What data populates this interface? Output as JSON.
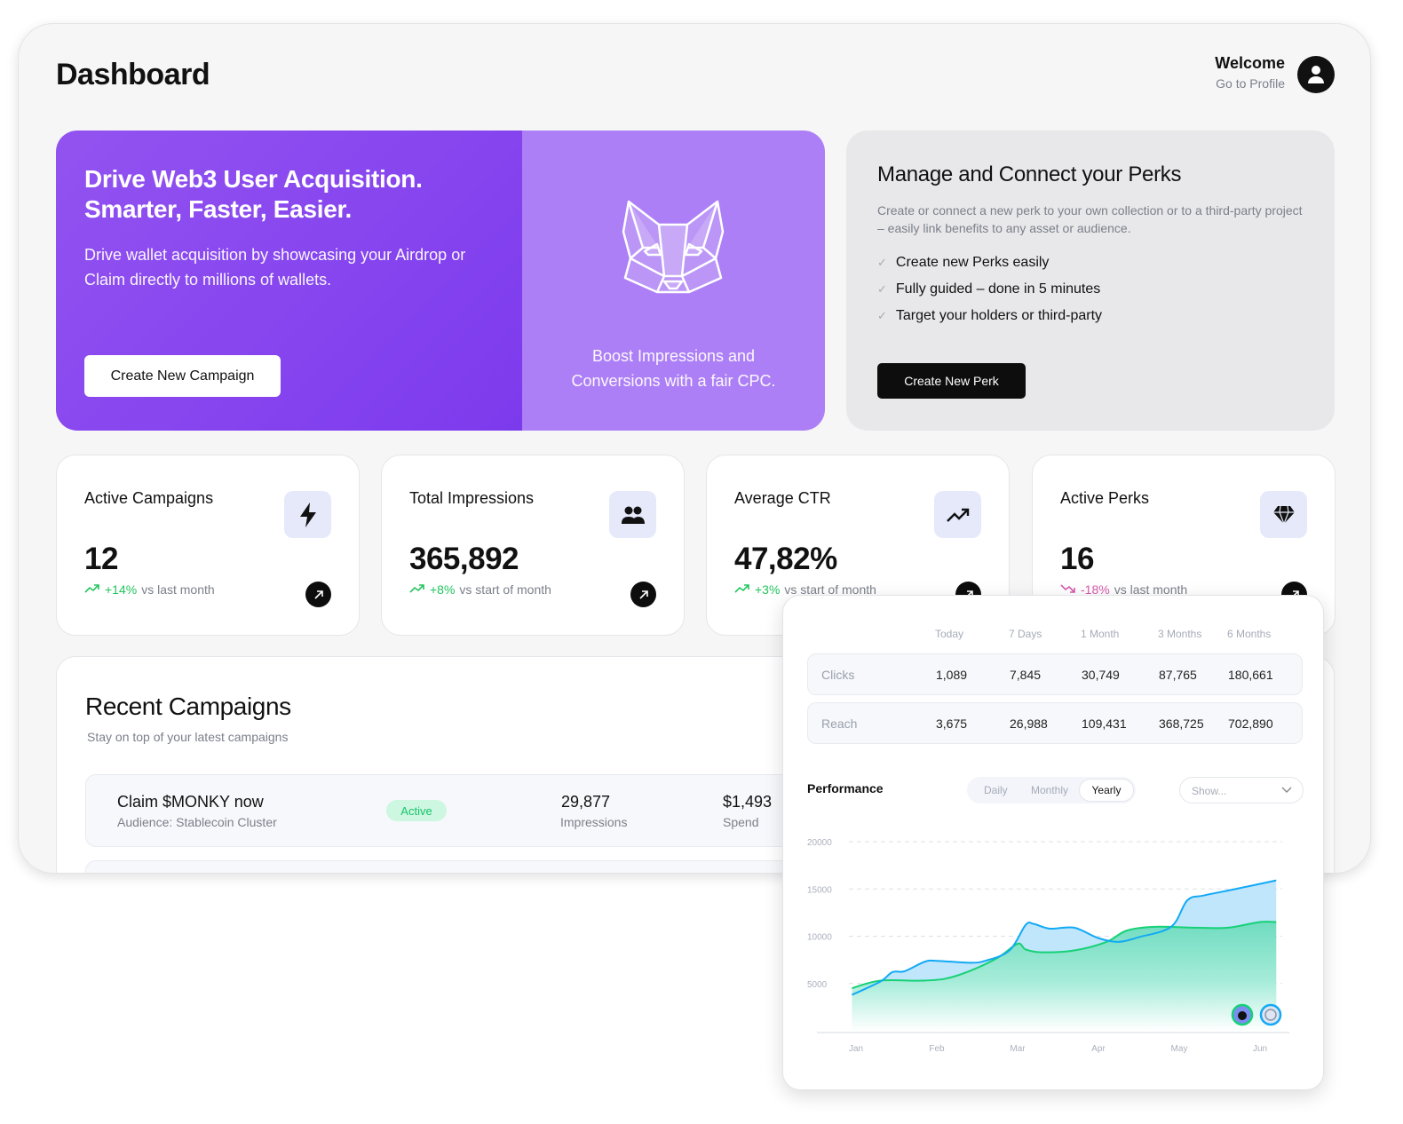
{
  "header": {
    "title": "Dashboard",
    "welcome": "Welcome",
    "profile_link": "Go to Profile"
  },
  "hero": {
    "headline_1": "Drive Web3 User Acquisition.",
    "headline_2": "Smarter, Faster, Easier.",
    "description": "Drive wallet acquisition by showcasing your Airdrop or Claim directly to millions of wallets.",
    "button": "Create New Campaign",
    "side_text": "Boost Impressions and Conversions with a fair CPC.",
    "logo": "fox-icon",
    "colors": {
      "primary": "#8b47ee",
      "secondary": "#ad7ff6"
    }
  },
  "perks": {
    "title": "Manage and Connect your Perks",
    "description": "Create or connect a new perk to your own collection or to a third-party project – easily link benefits to any asset or audience.",
    "items": [
      "Create new Perks easily",
      "Fully guided – done in 5 minutes",
      "Target your holders or third-party"
    ],
    "button": "Create New Perk"
  },
  "stats": [
    {
      "label": "Active Campaigns",
      "value": "12",
      "change": "+14%",
      "context": "vs last month",
      "trend": "up",
      "icon": "lightning-icon"
    },
    {
      "label": "Total Impressions",
      "value": "365,892",
      "change": "+8%",
      "context": "vs start of month",
      "trend": "up",
      "icon": "users-icon"
    },
    {
      "label": "Average CTR",
      "value": "47,82%",
      "change": "+3%",
      "context": "vs start of month",
      "trend": "up",
      "icon": "trending-up-icon"
    },
    {
      "label": "Active Perks",
      "value": "16",
      "change": "-18%",
      "context": "vs last month",
      "trend": "down",
      "icon": "diamond-icon"
    }
  ],
  "recent": {
    "title": "Recent Campaigns",
    "subtitle": "Stay on top of your latest campaigns",
    "campaigns": [
      {
        "name": "Claim $MONKY now",
        "audience": "Audience: Stablecoin Cluster",
        "status": "Active",
        "impressions": "29,877",
        "impressions_label": "Impressions",
        "spend": "$1,493",
        "spend_label": "Spend"
      }
    ]
  },
  "popup": {
    "columns": [
      "Today",
      "7 Days",
      "1 Month",
      "3 Months",
      "6 Months"
    ],
    "rows": [
      {
        "label": "Clicks",
        "values": [
          "1,089",
          "7,845",
          "30,749",
          "87,765",
          "180,661"
        ]
      },
      {
        "label": "Reach",
        "values": [
          "3,675",
          "26,988",
          "109,431",
          "368,725",
          "702,890"
        ]
      }
    ],
    "performance_title": "Performance",
    "periods": [
      "Daily",
      "Monthly",
      "Yearly"
    ],
    "selected_period": "Yearly",
    "show_placeholder": "Show..."
  },
  "chart_data": {
    "type": "area",
    "x_ticks": [
      "Jan",
      "Feb",
      "Mar",
      "Apr",
      "May",
      "Jun"
    ],
    "y_ticks": [
      5000,
      10000,
      15000,
      20000
    ],
    "ylim": [
      0,
      20000
    ],
    "grid": true,
    "x_unit": "month index (1=Jan)",
    "series": [
      {
        "color": "#12a9f5",
        "fill": "#bfe6fb",
        "points": [
          [
            0.95,
            3800
          ],
          [
            1.3,
            5200
          ],
          [
            1.45,
            6200
          ],
          [
            1.6,
            6300
          ],
          [
            1.85,
            7300
          ],
          [
            2.0,
            7400
          ],
          [
            2.4,
            7200
          ],
          [
            2.6,
            7400
          ],
          [
            2.9,
            8500
          ],
          [
            3.1,
            11200
          ],
          [
            3.2,
            11300
          ],
          [
            3.4,
            10800
          ],
          [
            3.7,
            10900
          ],
          [
            4.0,
            9800
          ],
          [
            4.25,
            9400
          ],
          [
            4.5,
            9900
          ],
          [
            4.9,
            11000
          ],
          [
            5.1,
            13800
          ],
          [
            5.3,
            14300
          ],
          [
            5.7,
            15000
          ],
          [
            6.2,
            15900
          ]
        ]
      },
      {
        "color": "#16d175",
        "fill": "#7fe3c9",
        "points": [
          [
            0.95,
            4500
          ],
          [
            1.3,
            5300
          ],
          [
            1.8,
            5300
          ],
          [
            2.1,
            5500
          ],
          [
            2.4,
            6300
          ],
          [
            2.75,
            7700
          ],
          [
            3.0,
            9200
          ],
          [
            3.1,
            8600
          ],
          [
            3.3,
            8300
          ],
          [
            3.7,
            8500
          ],
          [
            4.1,
            9400
          ],
          [
            4.35,
            10600
          ],
          [
            4.7,
            11000
          ],
          [
            5.2,
            10900
          ],
          [
            5.6,
            10900
          ],
          [
            6.0,
            11500
          ],
          [
            6.2,
            11500
          ]
        ]
      }
    ]
  }
}
